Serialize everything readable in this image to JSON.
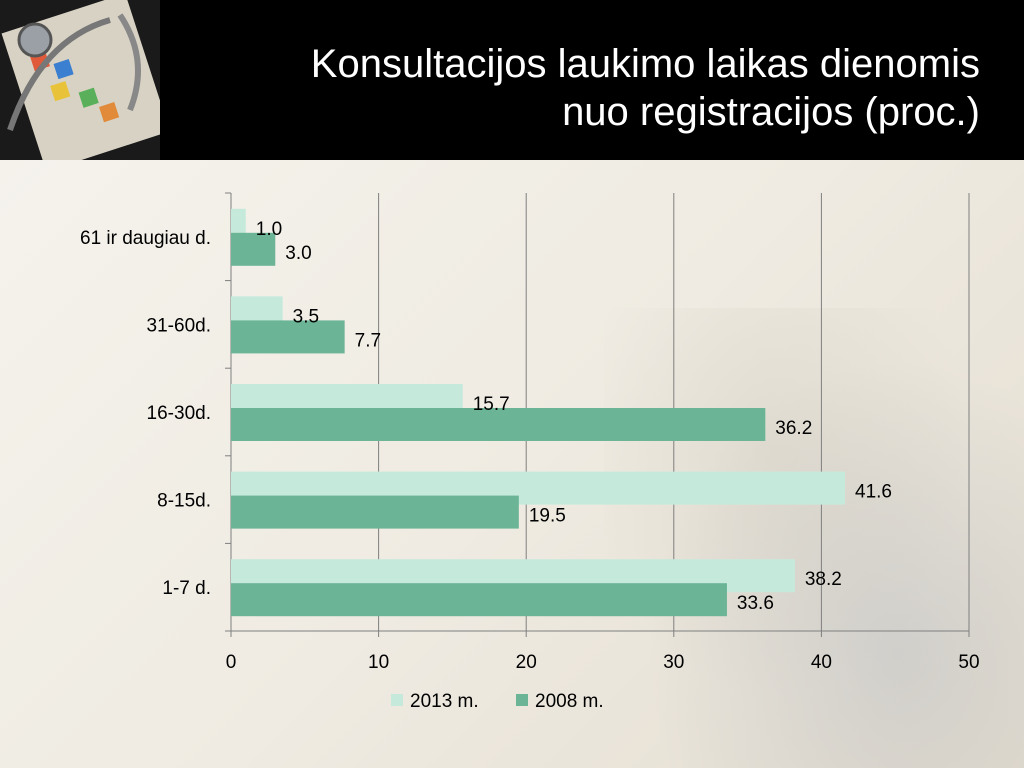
{
  "title_lines": [
    "Konsultacijos laukimo laikas dienomis",
    "nuo registracijos (proc.)"
  ],
  "chart_data": {
    "type": "bar",
    "orientation": "horizontal",
    "categories": [
      "61 ir daugiau d.",
      "31-60d.",
      "16-30d.",
      "8-15d.",
      "1-7 d."
    ],
    "series": [
      {
        "name": "2013 m.",
        "color": "#c5eadb",
        "values": [
          1.0,
          3.5,
          15.7,
          41.6,
          38.2
        ]
      },
      {
        "name": "2008 m.",
        "color": "#6bb495",
        "values": [
          3.0,
          7.7,
          36.2,
          19.5,
          33.6
        ]
      }
    ],
    "xlim": [
      0,
      50
    ],
    "xticks": [
      0,
      10,
      20,
      30,
      40,
      50
    ],
    "grid": true,
    "legend": "bottom"
  }
}
